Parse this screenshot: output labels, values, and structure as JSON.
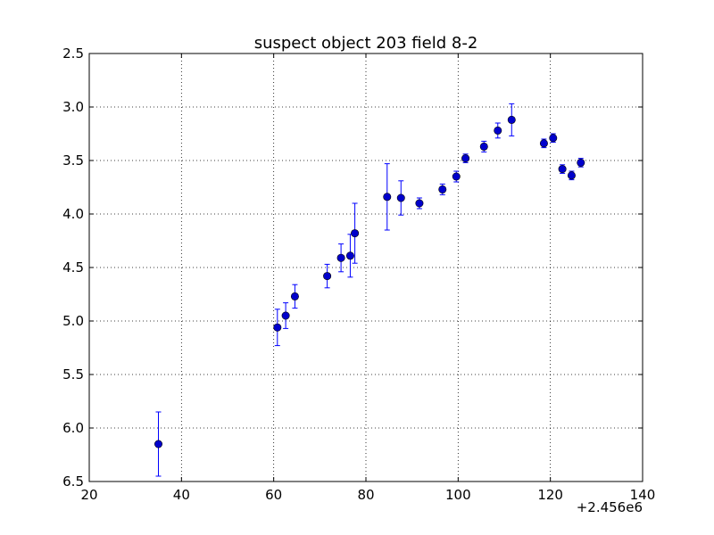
{
  "chart_data": {
    "type": "scatter",
    "title": "suspect object 203 field 8-2",
    "xlabel": "",
    "ylabel": "",
    "x_offset_label": "+2.456e6",
    "xlim": [
      20,
      140
    ],
    "ylim": [
      2.5,
      6.5
    ],
    "y_inverted": true,
    "grid": true,
    "grid_style": "dotted",
    "x_ticks": [
      20,
      40,
      60,
      80,
      100,
      120,
      140
    ],
    "y_ticks": [
      2.5,
      3.0,
      3.5,
      4.0,
      4.5,
      5.0,
      5.5,
      6.0,
      6.5
    ],
    "x_tick_labels": [
      "20",
      "40",
      "60",
      "80",
      "100",
      "120",
      "140"
    ],
    "y_tick_labels": [
      "2.5",
      "3.0",
      "3.5",
      "4.0",
      "4.5",
      "5.0",
      "5.5",
      "6.0",
      "6.5"
    ],
    "marker_color": "#0000cc",
    "errorbar_color": "#0000ff",
    "series": [
      {
        "points": [
          {
            "x": 2456035.0,
            "y": 6.15,
            "err": 0.3
          },
          {
            "x": 2456060.8,
            "y": 5.06,
            "err": 0.17
          },
          {
            "x": 2456062.6,
            "y": 4.95,
            "err": 0.12
          },
          {
            "x": 2456064.6,
            "y": 4.77,
            "err": 0.11
          },
          {
            "x": 2456071.6,
            "y": 4.58,
            "err": 0.11
          },
          {
            "x": 2456074.6,
            "y": 4.41,
            "err": 0.13
          },
          {
            "x": 2456076.6,
            "y": 4.39,
            "err": 0.2
          },
          {
            "x": 2456077.6,
            "y": 4.18,
            "err": 0.28
          },
          {
            "x": 2456084.6,
            "y": 3.84,
            "err": 0.31
          },
          {
            "x": 2456087.6,
            "y": 3.85,
            "err": 0.16
          },
          {
            "x": 2456091.6,
            "y": 3.9,
            "err": 0.05
          },
          {
            "x": 2456096.6,
            "y": 3.77,
            "err": 0.05
          },
          {
            "x": 2456099.6,
            "y": 3.65,
            "err": 0.05
          },
          {
            "x": 2456101.6,
            "y": 3.48,
            "err": 0.04
          },
          {
            "x": 2456105.6,
            "y": 3.37,
            "err": 0.05
          },
          {
            "x": 2456108.6,
            "y": 3.22,
            "err": 0.07
          },
          {
            "x": 2456111.6,
            "y": 3.12,
            "err": 0.15
          },
          {
            "x": 2456118.6,
            "y": 3.34,
            "err": 0.04
          },
          {
            "x": 2456120.6,
            "y": 3.29,
            "err": 0.04
          },
          {
            "x": 2456122.6,
            "y": 3.58,
            "err": 0.04
          },
          {
            "x": 2456124.6,
            "y": 3.64,
            "err": 0.04
          },
          {
            "x": 2456126.6,
            "y": 3.52,
            "err": 0.04
          }
        ]
      }
    ]
  }
}
